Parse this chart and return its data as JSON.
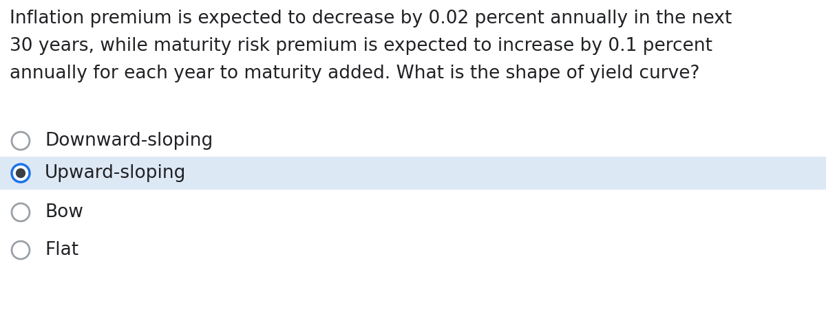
{
  "question_lines": [
    "Inflation premium is expected to decrease by 0.02 percent annually in the next",
    "30 years, while maturity risk premium is expected to increase by 0.1 percent",
    "annually for each year to maturity added. What is the shape of yield curve?"
  ],
  "options": [
    "Downward-sloping",
    "Upward-sloping",
    "Bow",
    "Flat"
  ],
  "selected_index": 1,
  "background_color": "#ffffff",
  "selected_bg_color": "#dde8f5",
  "radio_border_unselected": "#9aa0a6",
  "radio_border_selected": "#1a73e8",
  "radio_dot_color": "#3c4043",
  "text_color": "#202124",
  "question_fontsize": 19,
  "option_fontsize": 19,
  "fig_width": 12.0,
  "fig_height": 4.57
}
